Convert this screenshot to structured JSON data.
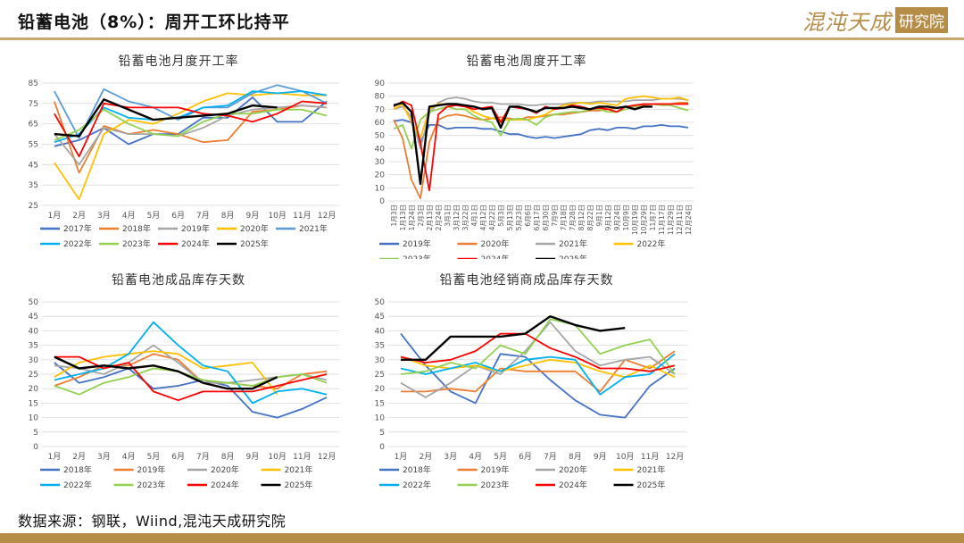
{
  "page": {
    "title": "铅蓄电池（8%）：周开工环比持平",
    "logo_left": "混沌天成",
    "logo_right": "研究院",
    "source": "数据来源：钢联，Wiind,混沌天成研究院"
  },
  "chart_data": [
    {
      "type": "line",
      "title": "铅蓄电池月度开工率",
      "categories": [
        "1月",
        "2月",
        "3月",
        "4月",
        "5月",
        "6月",
        "7月",
        "8月",
        "9月",
        "10月",
        "11月",
        "12月"
      ],
      "ylim": [
        25,
        85
      ],
      "yticks": [
        25,
        35,
        45,
        55,
        65,
        75,
        85
      ],
      "grid": true,
      "legend_position": "bottom",
      "series": [
        {
          "name": "2017年",
          "color": "#4472c4",
          "values": [
            54,
            57,
            63,
            55,
            60,
            60,
            68,
            68,
            78,
            66,
            66,
            76
          ]
        },
        {
          "name": "2018年",
          "color": "#ed7d31",
          "values": [
            76,
            41,
            64,
            60,
            62,
            60,
            56,
            57,
            71,
            72,
            74,
            73
          ]
        },
        {
          "name": "2019年",
          "color": "#a5a5a5",
          "values": [
            60,
            45,
            63,
            60,
            60,
            59,
            63,
            69,
            72,
            73,
            74,
            73
          ]
        },
        {
          "name": "2020年",
          "color": "#ffc000",
          "values": [
            46,
            28,
            60,
            67,
            65,
            70,
            76,
            80,
            79,
            80,
            79,
            79
          ]
        },
        {
          "name": "2021年",
          "color": "#5b9bd5",
          "values": [
            81,
            58,
            82,
            76,
            73,
            67,
            73,
            73,
            80,
            84,
            81,
            75
          ]
        },
        {
          "name": "2022年",
          "color": "#00b0f0",
          "values": [
            56,
            60,
            73,
            68,
            67,
            68,
            73,
            74,
            81,
            80,
            81,
            79
          ]
        },
        {
          "name": "2023年",
          "color": "#92d050",
          "values": [
            57,
            62,
            72,
            65,
            60,
            59,
            66,
            70,
            70,
            72,
            72,
            69
          ]
        },
        {
          "name": "2024年",
          "color": "#ff0000",
          "values": [
            70,
            49,
            75,
            73,
            73,
            73,
            70,
            69,
            66,
            70,
            76,
            75
          ]
        },
        {
          "name": "2025年",
          "color": "#000000",
          "values": [
            60,
            59,
            77,
            72,
            67,
            68,
            69,
            70,
            74,
            73,
            null,
            null
          ]
        }
      ]
    },
    {
      "type": "line",
      "title": "铅蓄电池周度开工率",
      "x_labels": [
        "1月3日",
        "1月13日",
        "1月24日",
        "2月3日",
        "2月13日",
        "2月24日",
        "3月1日",
        "3月12日",
        "3月22日",
        "4月1日",
        "4月12日",
        "4月22日",
        "5月3日",
        "5月13日",
        "5月23日",
        "6月6日",
        "6月17日",
        "6月30日",
        "7月9日",
        "7月18日",
        "7月28日",
        "8月12日",
        "8月22日",
        "9月1日",
        "9月12日",
        "9月24日",
        "10月9日",
        "10月19日",
        "10月29日",
        "11月7日",
        "11月17日",
        "11月29日",
        "12月11日",
        "12月24日"
      ],
      "ylim": [
        0,
        90
      ],
      "yticks": [
        0,
        10,
        20,
        30,
        40,
        50,
        60,
        70,
        80,
        90
      ],
      "grid": true,
      "legend_position": "bottom",
      "series": [
        {
          "name": "2019年",
          "color": "#4472c4",
          "values": [
            61,
            62,
            60,
            45,
            58,
            58,
            55,
            56,
            56,
            56,
            55,
            55,
            53,
            51,
            51,
            49,
            48,
            49,
            48,
            49,
            50,
            51,
            54,
            55,
            54,
            56,
            56,
            55,
            57,
            57,
            58,
            57,
            57,
            56
          ]
        },
        {
          "name": "2020年",
          "color": "#ed7d31",
          "values": [
            62,
            48,
            16,
            2,
            45,
            62,
            65,
            66,
            65,
            63,
            62,
            63,
            64,
            63,
            62,
            64,
            64,
            65,
            66,
            66,
            67,
            68,
            69,
            69,
            70,
            71,
            72,
            72,
            73,
            74,
            74,
            74,
            75,
            75
          ]
        },
        {
          "name": "2021年",
          "color": "#a5a5a5",
          "values": [
            70,
            72,
            64,
            40,
            67,
            75,
            78,
            79,
            78,
            76,
            75,
            75,
            74,
            74,
            74,
            73,
            73,
            74,
            74,
            74,
            75,
            75,
            75,
            76,
            76,
            76,
            76,
            77,
            77,
            77,
            78,
            78,
            78,
            77
          ]
        },
        {
          "name": "2022年",
          "color": "#ffc000",
          "values": [
            70,
            74,
            60,
            48,
            70,
            74,
            74,
            73,
            72,
            68,
            65,
            63,
            62,
            62,
            62,
            62,
            64,
            66,
            70,
            73,
            74,
            75,
            74,
            75,
            74,
            73,
            78,
            79,
            80,
            79,
            78,
            78,
            79,
            77
          ]
        },
        {
          "name": "2023年",
          "color": "#92d050",
          "values": [
            55,
            58,
            40,
            62,
            68,
            70,
            72,
            70,
            70,
            65,
            62,
            60,
            50,
            62,
            63,
            62,
            58,
            64,
            66,
            67,
            68,
            68,
            70,
            70,
            68,
            68,
            70,
            72,
            74,
            74,
            73,
            73,
            71,
            69
          ]
        },
        {
          "name": "2024年",
          "color": "#ff0000",
          "values": [
            72,
            76,
            73,
            44,
            8,
            66,
            72,
            73,
            72,
            70,
            71,
            72,
            60,
            72,
            71,
            70,
            67,
            72,
            70,
            71,
            73,
            72,
            70,
            71,
            70,
            68,
            72,
            73,
            74,
            74,
            74,
            74,
            74,
            74
          ]
        },
        {
          "name": "2025年",
          "color": "#000000",
          "values": [
            73,
            75,
            68,
            13,
            72,
            73,
            74,
            74,
            73,
            72,
            70,
            71,
            56,
            72,
            72,
            70,
            68,
            71,
            71,
            71,
            72,
            71,
            70,
            72,
            72,
            71,
            72,
            70,
            72,
            72,
            null,
            null,
            null,
            null
          ]
        }
      ]
    },
    {
      "type": "line",
      "title": "铅蓄电池成品库存天数",
      "categories": [
        "1月",
        "2月",
        "3月",
        "4月",
        "5月",
        "6月",
        "7月",
        "8月",
        "9月",
        "10月",
        "11月",
        "12月"
      ],
      "ylim": [
        0,
        50
      ],
      "yticks": [
        0,
        5,
        10,
        15,
        20,
        25,
        30,
        35,
        40,
        45,
        50
      ],
      "grid": true,
      "legend_position": "bottom",
      "series": [
        {
          "name": "2018年",
          "color": "#4472c4",
          "values": [
            29,
            22,
            24,
            27,
            20,
            21,
            23,
            21,
            12,
            10,
            13,
            17
          ]
        },
        {
          "name": "2019年",
          "color": "#ed7d31",
          "values": [
            21,
            24,
            28,
            28,
            32,
            30,
            22,
            22,
            21,
            20,
            25,
            26
          ]
        },
        {
          "name": "2020年",
          "color": "#a5a5a5",
          "values": [
            28,
            27,
            25,
            29,
            35,
            29,
            22,
            22,
            23,
            24,
            25,
            23
          ]
        },
        {
          "name": "2021年",
          "color": "#ffc000",
          "values": [
            24,
            29,
            31,
            32,
            33,
            32,
            27,
            28,
            29,
            18,
            null,
            null
          ]
        },
        {
          "name": "2022年",
          "color": "#00b0f0",
          "values": [
            23,
            25,
            27,
            32,
            43,
            35,
            28,
            26,
            15,
            19,
            20,
            18
          ]
        },
        {
          "name": "2023年",
          "color": "#92d050",
          "values": [
            21,
            18,
            22,
            24,
            27,
            26,
            23,
            22,
            21,
            24,
            25,
            22
          ]
        },
        {
          "name": "2024年",
          "color": "#ff0000",
          "values": [
            31,
            31,
            27,
            29,
            19,
            16,
            19,
            19,
            19,
            21,
            23,
            25
          ]
        },
        {
          "name": "2025年",
          "color": "#000000",
          "values": [
            31,
            27,
            28,
            27,
            28,
            26,
            22,
            20,
            20,
            24,
            null,
            null
          ]
        }
      ]
    },
    {
      "type": "line",
      "title": "铅蓄电池经销商成品库存天数",
      "categories": [
        "1月",
        "2月",
        "3月",
        "4月",
        "5月",
        "6月",
        "7月",
        "8月",
        "9月",
        "10月",
        "11月",
        "12月"
      ],
      "ylim": [
        0,
        50
      ],
      "yticks": [
        0,
        5,
        10,
        15,
        20,
        25,
        30,
        35,
        40,
        45,
        50
      ],
      "grid": true,
      "legend_position": "bottom",
      "series": [
        {
          "name": "2018年",
          "color": "#4472c4",
          "values": [
            39,
            28,
            19,
            15,
            32,
            31,
            23,
            16,
            11,
            10,
            21,
            27
          ]
        },
        {
          "name": "2019年",
          "color": "#ed7d31",
          "values": [
            19,
            19,
            20,
            19,
            27,
            26,
            26,
            26,
            19,
            30,
            27,
            33
          ]
        },
        {
          "name": "2020年",
          "color": "#a5a5a5",
          "values": [
            22,
            17,
            22,
            28,
            25,
            33,
            43,
            33,
            28,
            30,
            31,
            25
          ]
        },
        {
          "name": "2021年",
          "color": "#ffc000",
          "values": [
            31,
            28,
            27,
            28,
            26,
            28,
            30,
            29,
            26,
            24,
            28,
            24
          ]
        },
        {
          "name": "2022年",
          "color": "#00b0f0",
          "values": [
            27,
            25,
            27,
            29,
            26,
            30,
            31,
            30,
            18,
            24,
            25,
            32
          ]
        },
        {
          "name": "2023年",
          "color": "#92d050",
          "values": [
            25,
            26,
            29,
            27,
            35,
            32,
            44,
            42,
            32,
            35,
            37,
            25
          ]
        },
        {
          "name": "2024年",
          "color": "#ff0000",
          "values": [
            31,
            29,
            30,
            33,
            39,
            39,
            34,
            31,
            27,
            27,
            26,
            28
          ]
        },
        {
          "name": "2025年",
          "color": "#000000",
          "values": [
            30,
            30,
            38,
            38,
            38,
            39,
            45,
            42,
            40,
            41,
            null,
            null
          ]
        }
      ]
    }
  ]
}
